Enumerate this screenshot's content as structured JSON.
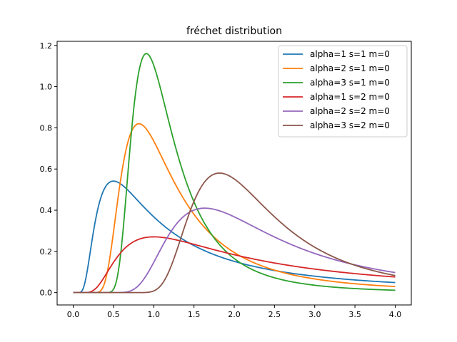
{
  "chart_data": {
    "type": "line",
    "title": "fréchet distribution",
    "xlabel": "",
    "ylabel": "",
    "xlim": [
      -0.2,
      4.2
    ],
    "ylim": [
      -0.06,
      1.22
    ],
    "x_range": [
      0.0,
      4.0
    ],
    "xticks": [
      0.0,
      0.5,
      1.0,
      1.5,
      2.0,
      2.5,
      3.0,
      3.5,
      4.0
    ],
    "yticks": [
      0.0,
      0.2,
      0.4,
      0.6,
      0.8,
      1.0,
      1.2
    ],
    "xtick_labels": [
      "0.0",
      "0.5",
      "1.0",
      "1.5",
      "2.0",
      "2.5",
      "3.0",
      "3.5",
      "4.0"
    ],
    "ytick_labels": [
      "0.0",
      "0.2",
      "0.4",
      "0.6",
      "0.8",
      "1.0",
      "1.2"
    ],
    "grid": false,
    "legend_position": "top-right",
    "series": [
      {
        "name": "alpha=1 s=1 m=0",
        "alpha": 1,
        "s": 1,
        "m": 0,
        "color": "#1f77b4"
      },
      {
        "name": "alpha=2 s=1 m=0",
        "alpha": 2,
        "s": 1,
        "m": 0,
        "color": "#ff7f0e"
      },
      {
        "name": "alpha=3 s=1 m=0",
        "alpha": 3,
        "s": 1,
        "m": 0,
        "color": "#2ca02c"
      },
      {
        "name": "alpha=1 s=2 m=0",
        "alpha": 1,
        "s": 2,
        "m": 0,
        "color": "#d62728"
      },
      {
        "name": "alpha=2 s=2 m=0",
        "alpha": 2,
        "s": 2,
        "m": 0,
        "color": "#9467bd"
      },
      {
        "name": "alpha=3 s=2 m=0",
        "alpha": 3,
        "s": 2,
        "m": 0,
        "color": "#8c564b"
      }
    ]
  }
}
